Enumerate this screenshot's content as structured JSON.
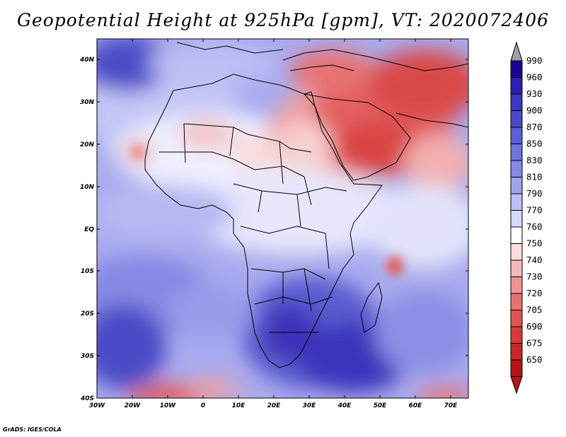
{
  "title": "Geopotential Height at 925hPa [gpm], VT: 2020072406",
  "credit": "GrADS: IGES/COLA",
  "lat_labels": [
    "40N",
    "30N",
    "20N",
    "10N",
    "EQ",
    "10S",
    "20S",
    "30S",
    "40S"
  ],
  "lon_labels": [
    "30W",
    "20W",
    "10W",
    "0",
    "10E",
    "20E",
    "30E",
    "40E",
    "50E",
    "60E",
    "70E"
  ],
  "colorbar": {
    "labels": [
      "990",
      "960",
      "930",
      "900",
      "870",
      "850",
      "830",
      "810",
      "790",
      "770",
      "760",
      "750",
      "740",
      "730",
      "720",
      "705",
      "690",
      "675",
      "650"
    ],
    "colors": [
      "#1e0096",
      "#2f1eb0",
      "#3c36be",
      "#4a4ac8",
      "#5a5fd2",
      "#6e74dc",
      "#8689e4",
      "#9fa2ec",
      "#bcbef4",
      "#d8daf9",
      "#ffffff",
      "#fbdcdc",
      "#f6b9b9",
      "#ef9494",
      "#e87272",
      "#e05454",
      "#d63a3a",
      "#c82828",
      "#b41414"
    ],
    "top_arrow_color": "#a0a0a0",
    "bottom_arrow_color": "#b41414"
  }
}
